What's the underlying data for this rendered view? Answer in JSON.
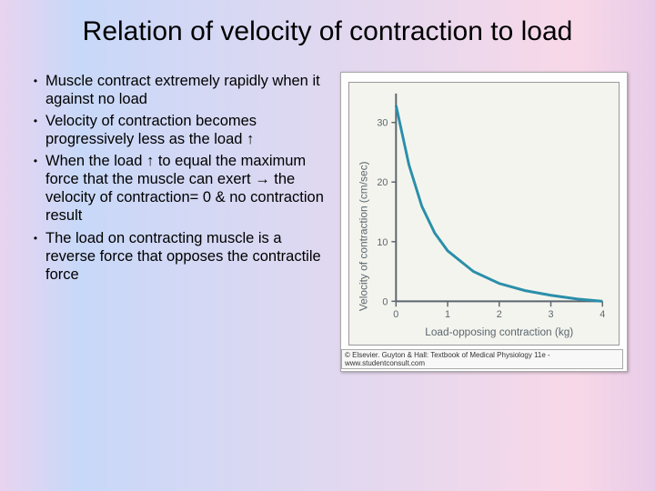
{
  "slide": {
    "title": "Relation of velocity of contraction to load",
    "bullets": [
      "Muscle contract extremely rapidly when it against no load",
      "Velocity of contraction becomes progressively less as the load ↑",
      "When the load ↑ to equal the maximum force that the muscle can exert → the velocity of contraction= 0 & no contraction result",
      "The load on contracting muscle is a reverse force that opposes the contractile force"
    ]
  },
  "chart": {
    "type": "line",
    "xlabel": "Load-opposing contraction (kg)",
    "ylabel": "Velocity of contraction (cm/sec)",
    "xlim": [
      0,
      4
    ],
    "ylim": [
      0,
      35
    ],
    "xticks": [
      0,
      1,
      2,
      3,
      4
    ],
    "yticks": [
      0,
      10,
      20,
      30
    ],
    "curve_color": "#2a8faa",
    "axis_color": "#5b6770",
    "background_color": "#f4f4ee",
    "outer_background": "#fefefe",
    "curve_points": [
      {
        "x": 0,
        "y": 33
      },
      {
        "x": 0.25,
        "y": 23
      },
      {
        "x": 0.5,
        "y": 16
      },
      {
        "x": 0.75,
        "y": 11.5
      },
      {
        "x": 1,
        "y": 8.5
      },
      {
        "x": 1.5,
        "y": 5
      },
      {
        "x": 2,
        "y": 3
      },
      {
        "x": 2.5,
        "y": 1.8
      },
      {
        "x": 3,
        "y": 1
      },
      {
        "x": 3.5,
        "y": 0.4
      },
      {
        "x": 4,
        "y": 0
      }
    ],
    "copyright": "© Elsevier. Guyton & Hall: Textbook of Medical Physiology 11e - www.studentconsult.com"
  }
}
